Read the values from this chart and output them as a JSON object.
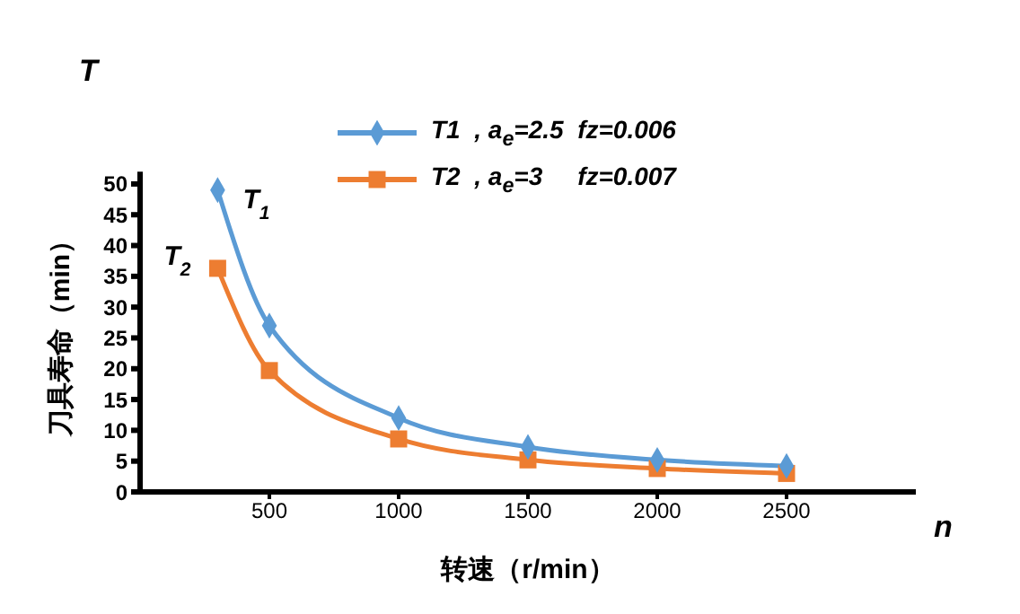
{
  "chart_data": {
    "type": "line",
    "xlabel": "转速（r/min）",
    "ylabel": "刀具寿命（min）",
    "x": [
      300,
      500,
      1000,
      1500,
      2000,
      2500
    ],
    "series": [
      {
        "name": "T1  , a$_{e}$=2.5  fz=0.006",
        "color": "#5b9bd5",
        "marker": "diamond",
        "values": [
          49,
          27,
          12,
          7.3,
          5.2,
          4.2
        ]
      },
      {
        "name": "T2  , a$_{e}$=3     fz=0.007",
        "color": "#ed7d31",
        "marker": "square",
        "values": [
          36.3,
          19.7,
          8.6,
          5.2,
          3.8,
          3.0
        ]
      }
    ],
    "annotations": [
      {
        "text": "T$_{1}$",
        "x": 300,
        "y": 49
      },
      {
        "text": "T$_{2}$",
        "x": 300,
        "y": 36.3
      },
      "T",
      "n"
    ],
    "xlim": [
      0,
      3000
    ],
    "xticks": [
      500,
      1000,
      1500,
      2000,
      2500
    ],
    "ylim": [
      0,
      52
    ],
    "yticks": [
      0,
      5,
      10,
      15,
      20,
      25,
      30,
      35,
      40,
      45,
      50
    ],
    "grid": false,
    "legend": "top"
  }
}
